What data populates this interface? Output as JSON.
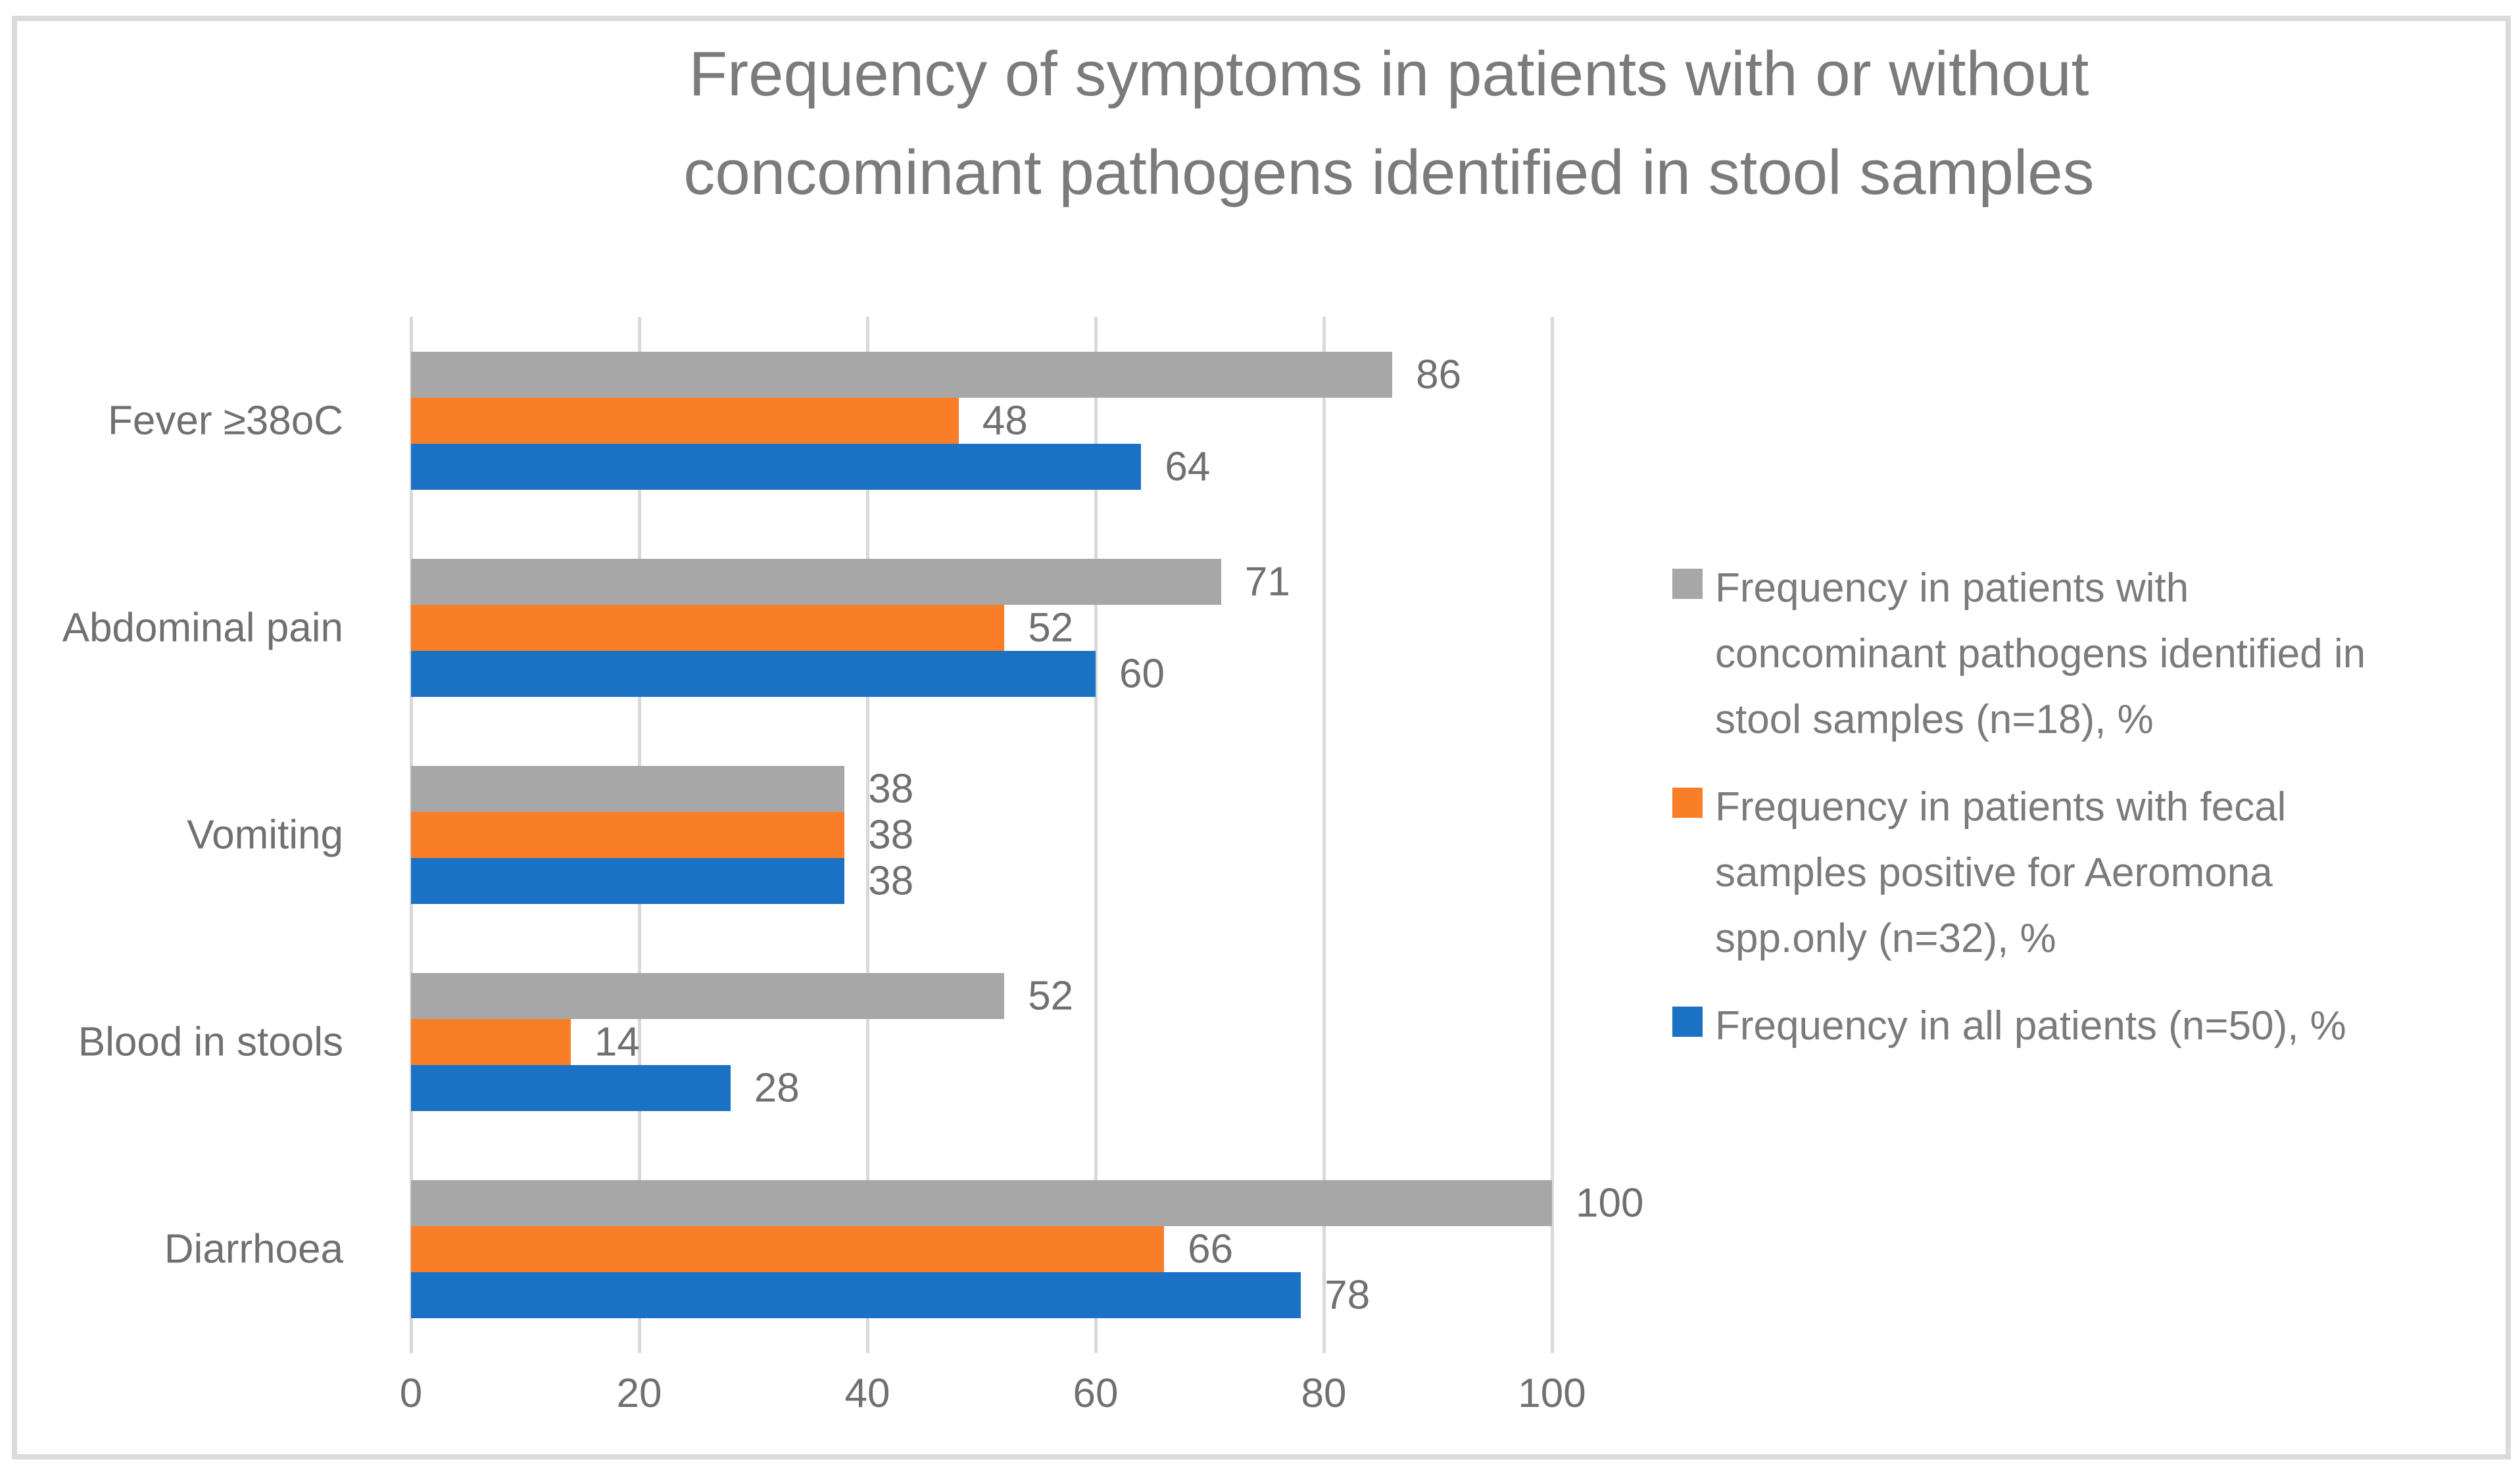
{
  "frame": {
    "border_color": "#DBDBDB",
    "background": "#FFFFFF"
  },
  "chart_data": {
    "type": "bar",
    "orientation": "horizontal",
    "title": "Frequency of symptoms in patients with or without concominant pathogens identified in stool samples",
    "title_lines": [
      "Frequency of symptoms in patients with or without",
      "concominant pathogens identified in stool samples"
    ],
    "categories": [
      "Fever ≥38oC",
      "Abdominal pain",
      "Vomiting",
      "Blood in stools",
      "Diarrhoea"
    ],
    "series": [
      {
        "name": "Frequency in patients with concominant pathogens identified in stool samples (n=18), %",
        "name_lines": [
          "Frequency in patients with",
          "concominant pathogens identified in",
          "stool samples (n=18), %"
        ],
        "color": "#A7A7A7",
        "values": [
          86,
          71,
          38,
          52,
          100
        ]
      },
      {
        "name": "Frequency in patients with fecal samples positive for Aeromona spp.only (n=32), %",
        "name_lines": [
          "Frequency in patients with fecal",
          "samples positive for Aeromona",
          "spp.only (n=32), %"
        ],
        "color": "#FA7E27",
        "values": [
          48,
          52,
          38,
          14,
          66
        ]
      },
      {
        "name": "Frequency in all patients (n=50), %",
        "name_lines": [
          "Frequency in all patients (n=50), %"
        ],
        "color": "#1B72C4",
        "values": [
          64,
          60,
          38,
          28,
          78
        ]
      }
    ],
    "x_axis": {
      "ticks": [
        0,
        20,
        40,
        60,
        80,
        100
      ],
      "range": [
        0,
        100
      ],
      "grid": true
    },
    "legend_position": "right",
    "data_labels": true,
    "colors": {
      "title_text": "#7B7B7B",
      "axis_text": "#707070",
      "data_label_text": "#707070",
      "legend_text": "#7B7B7B",
      "gridline": "#D9D9D9"
    }
  }
}
